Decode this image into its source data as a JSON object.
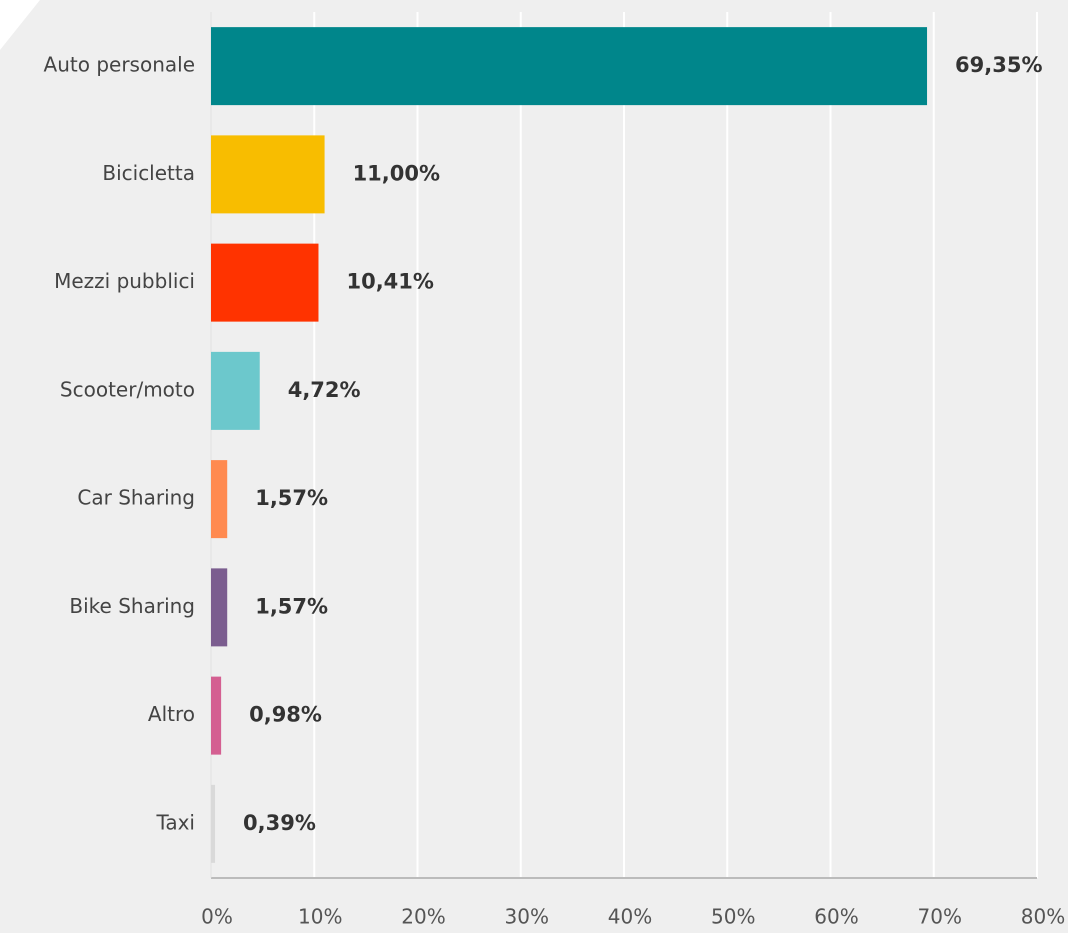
{
  "chart_data": {
    "type": "hbar",
    "categories": [
      "Auto personale",
      "Bicicletta",
      "Mezzi pubblici",
      "Scooter/moto",
      "Car Sharing",
      "Bike Sharing",
      "Altro",
      "Taxi"
    ],
    "values": [
      69.35,
      11.0,
      10.41,
      4.72,
      1.57,
      1.57,
      0.98,
      0.39
    ],
    "value_labels": [
      "69,35%",
      "11,00%",
      "10,41%",
      "4,72%",
      "1,57%",
      "1,57%",
      "0,98%",
      "0,39%"
    ],
    "colors": [
      "#00868b",
      "#f8bd00",
      "#ff3300",
      "#6cc8cc",
      "#ff8a50",
      "#7b5d8f",
      "#d45f91",
      "#d9d9d9"
    ],
    "xlim": [
      0,
      80
    ],
    "xticks": [
      {
        "value": 0,
        "label": "0%"
      },
      {
        "value": 10,
        "label": "10%"
      },
      {
        "value": 20,
        "label": "20%"
      },
      {
        "value": 30,
        "label": "30%"
      },
      {
        "value": 40,
        "label": "40%"
      },
      {
        "value": 50,
        "label": "50%"
      },
      {
        "value": 60,
        "label": "60%"
      },
      {
        "value": 70,
        "label": "70%"
      },
      {
        "value": 80,
        "label": "80%"
      }
    ],
    "grid": true
  }
}
